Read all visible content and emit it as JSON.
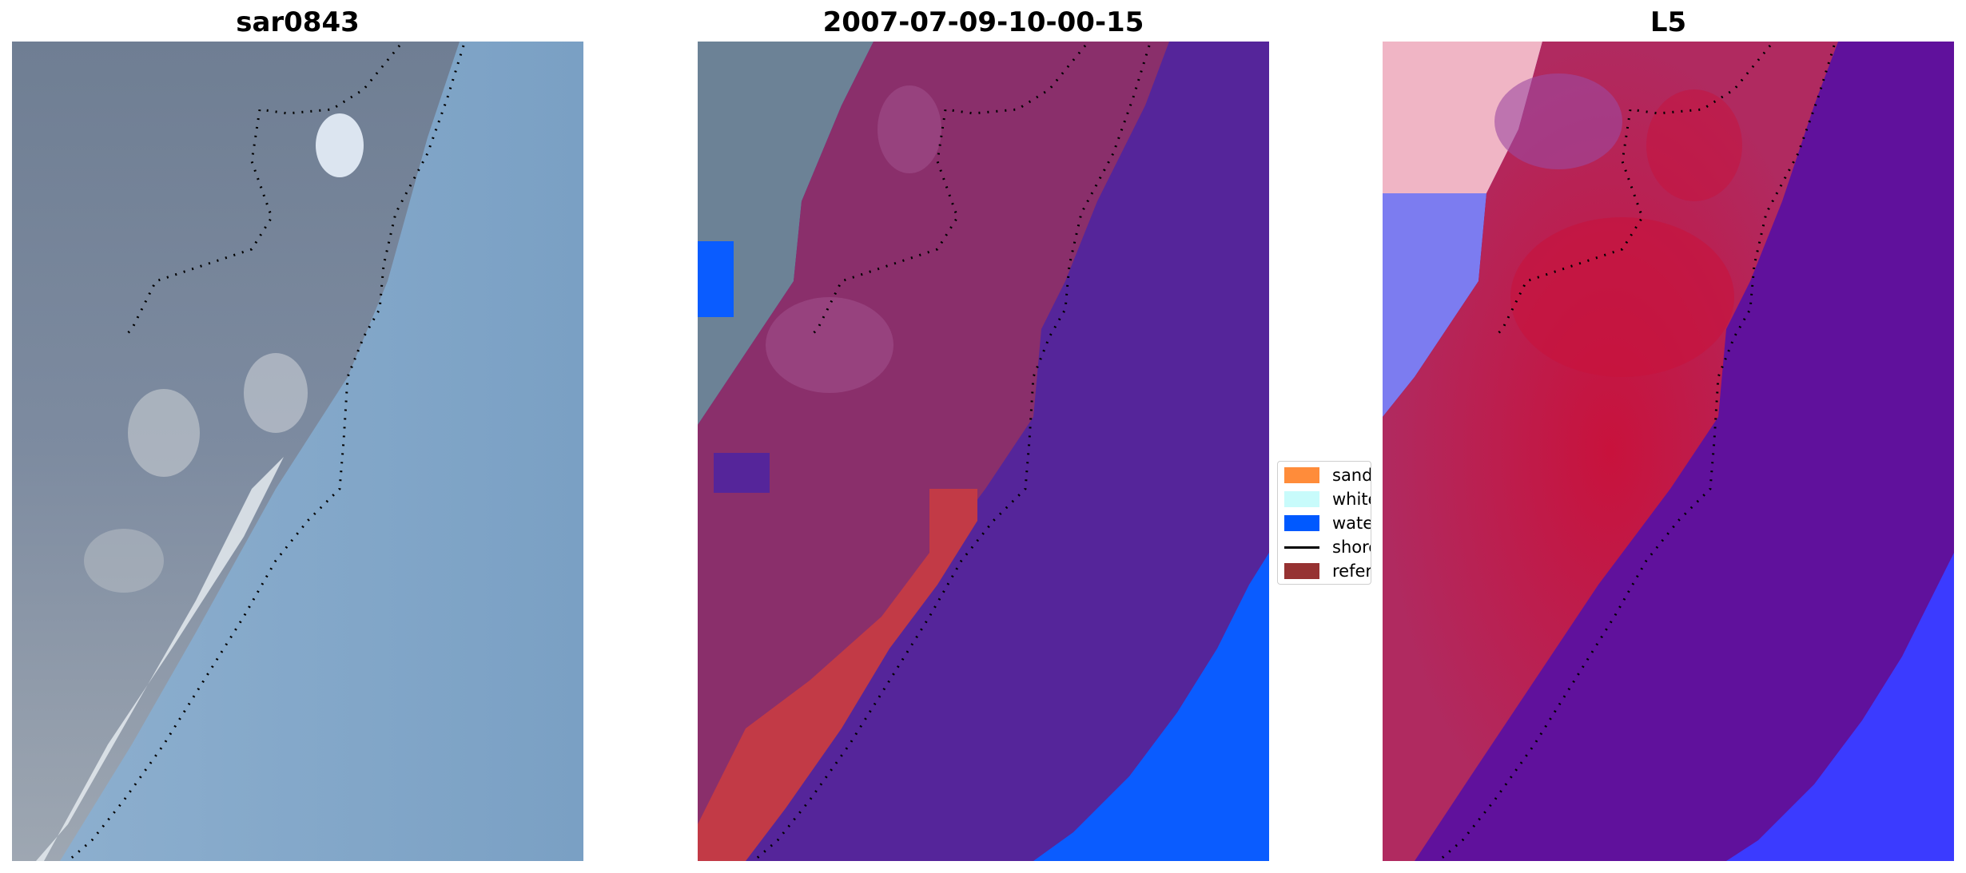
{
  "panels": [
    {
      "title": "sar0843"
    },
    {
      "title": "2007-07-09-10-00-15"
    },
    {
      "title": "L5"
    }
  ],
  "legend": {
    "items": [
      {
        "label": "sand",
        "color": "#ff8c3a",
        "kind": "patch"
      },
      {
        "label": "whitewater",
        "color": "#c8fbfb",
        "kind": "patch"
      },
      {
        "label": "water",
        "color": "#0059ff",
        "kind": "patch"
      },
      {
        "label": "shoreline",
        "color": "#000000",
        "kind": "line"
      },
      {
        "label": "reference",
        "color": "#963232",
        "kind": "patch"
      }
    ]
  },
  "colors": {
    "rgb_land": "#6e7f95",
    "rgb_sea": "#7fa4c6",
    "rgb_beach": "#e8eef2",
    "class_sand_overlay": "#8a2f6b",
    "class_sea": "#55259a",
    "class_water_bright": "#0a5cff",
    "class_reference": "#c23a46",
    "prob_land_red": "#c8123c",
    "prob_sea_purple": "#60119c",
    "prob_blue": "#3b3bff"
  }
}
